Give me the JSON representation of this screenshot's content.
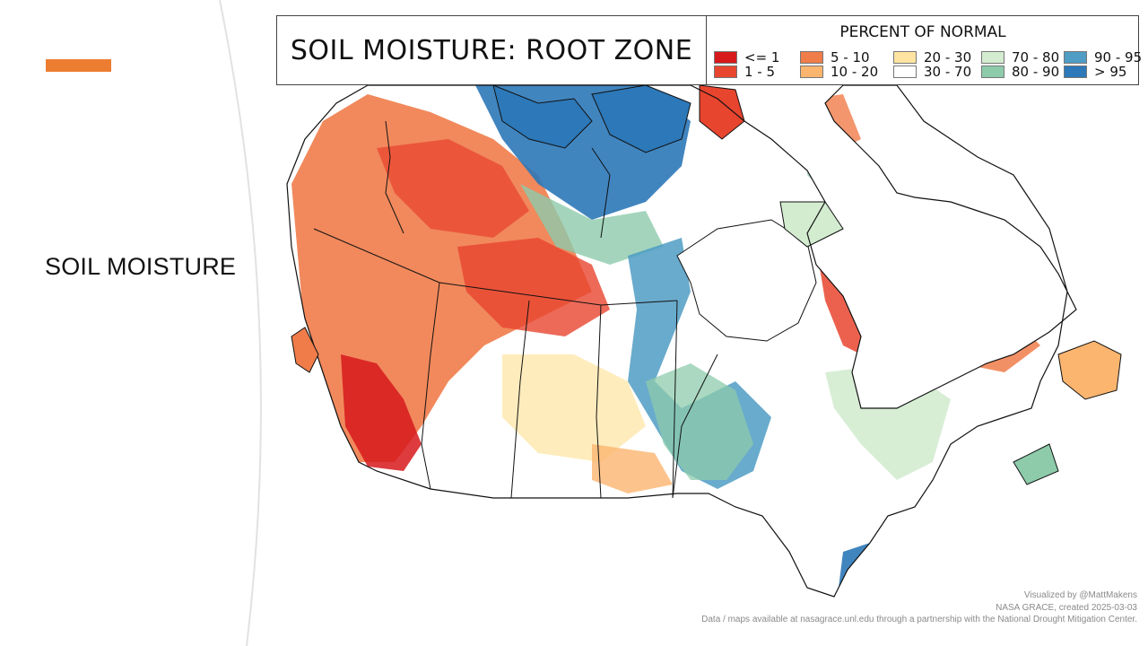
{
  "slide": {
    "title": "SOIL MOISTURE",
    "accent_color": "#ed7d31"
  },
  "map": {
    "title": "SOIL MOISTURE: ROOT ZONE",
    "legend": {
      "title": "PERCENT OF NORMAL",
      "items": [
        {
          "label": "<= 1",
          "color": "#d7191c"
        },
        {
          "label": "1 - 5",
          "color": "#e8452f"
        },
        {
          "label": "5 - 10",
          "color": "#f07c4a"
        },
        {
          "label": "10 - 20",
          "color": "#fbb56f"
        },
        {
          "label": "20 - 30",
          "color": "#fee4a0"
        },
        {
          "label": "30 - 70",
          "color": "#ffffff"
        },
        {
          "label": "70 - 80",
          "color": "#d3ecd0"
        },
        {
          "label": "80 - 90",
          "color": "#8dcbab"
        },
        {
          "label": "90 - 95",
          "color": "#4f9cc4"
        },
        {
          "label": "> 95",
          "color": "#2c78b8"
        }
      ]
    },
    "credits": [
      "Visualized by @MattMakens",
      "NASA GRACE, created 2025-03-03",
      "Data / maps available at nasagrace.unl.edu through a partnership with the National Drought Mitigation Center."
    ]
  }
}
